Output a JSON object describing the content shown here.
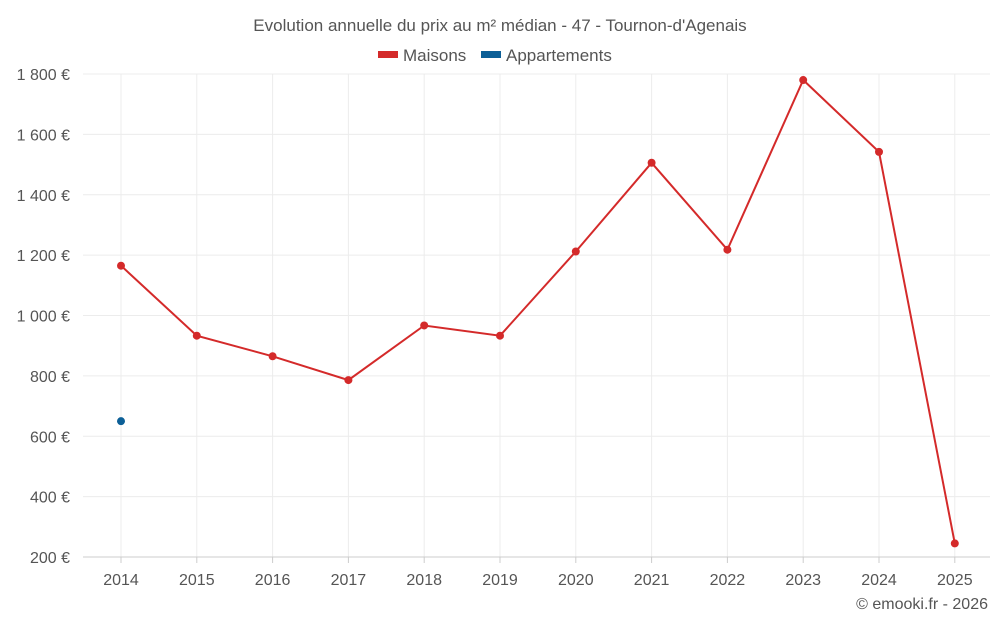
{
  "chart_data": {
    "type": "line",
    "title": "Evolution annuelle du prix au m² médian - 47 - Tournon-d'Agenais",
    "categories": [
      "2014",
      "2015",
      "2016",
      "2017",
      "2018",
      "2019",
      "2020",
      "2021",
      "2022",
      "2023",
      "2024",
      "2025"
    ],
    "series": [
      {
        "name": "Maisons",
        "color": "#d42a2a",
        "values": [
          1165,
          933,
          865,
          786,
          967,
          933,
          1212,
          1506,
          1218,
          1780,
          1542,
          245
        ]
      },
      {
        "name": "Appartements",
        "color": "#0c5f97",
        "values": [
          650,
          null,
          null,
          null,
          null,
          null,
          null,
          null,
          null,
          null,
          null,
          null
        ]
      }
    ],
    "yticks": [
      "200 €",
      "400 €",
      "600 €",
      "800 €",
      "1 000 €",
      "1 200 €",
      "1 400 €",
      "1 600 €",
      "1 800 €"
    ],
    "ytick_values": [
      200,
      400,
      600,
      800,
      1000,
      1200,
      1400,
      1600,
      1800
    ],
    "ylim": [
      200,
      1800
    ],
    "grid": true,
    "legend_position": "top-center",
    "credit": "© emooki.fr - 2026"
  }
}
